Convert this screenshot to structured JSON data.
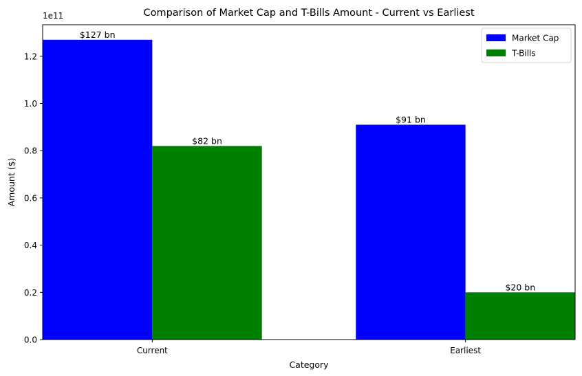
{
  "chart_data": {
    "type": "bar",
    "title": "Comparison of Market Cap and T-Bills Amount - Current vs Earliest",
    "xlabel": "Category",
    "ylabel": "Amount ($)",
    "y_offset_label": "1e11",
    "categories": [
      "Current",
      "Earliest"
    ],
    "series": [
      {
        "name": "Market Cap",
        "color": "#0000ff",
        "values": [
          127000000000,
          91000000000
        ],
        "labels": [
          "$127 bn",
          "$91 bn"
        ]
      },
      {
        "name": "T-Bills",
        "color": "#008000",
        "values": [
          82000000000,
          20000000000
        ],
        "labels": [
          "$82 bn",
          "$20 bn"
        ]
      }
    ],
    "ylim": [
      0,
      133350000000
    ],
    "y_ticks": [
      0,
      20000000000,
      40000000000,
      60000000000,
      80000000000,
      100000000000,
      120000000000
    ],
    "y_tick_labels": [
      "0.0",
      "0.2",
      "0.4",
      "0.6",
      "0.8",
      "1.0",
      "1.2"
    ],
    "grid": false,
    "legend_position": "top-right"
  }
}
